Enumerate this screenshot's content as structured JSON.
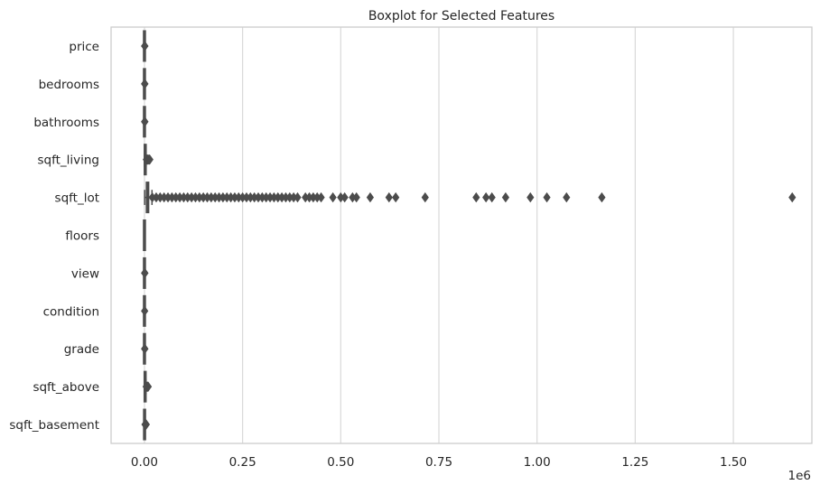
{
  "chart_data": {
    "type": "boxplot",
    "orientation": "horizontal",
    "title": "Boxplot for Selected Features",
    "xlabel": "",
    "ylabel": "",
    "x_offset_label": "1e6",
    "x_unit_multiplier": 1000000,
    "xlim": [
      -0.085,
      1.7
    ],
    "xticks": [
      0.0,
      0.25,
      0.5,
      0.75,
      1.0,
      1.25,
      1.5
    ],
    "xtick_labels": [
      "0.00",
      "0.25",
      "0.50",
      "0.75",
      "1.00",
      "1.25",
      "1.50"
    ],
    "grid": {
      "x": true,
      "y": false
    },
    "style_colors": {
      "box": "#4c4c4c",
      "grid": "#d9d9d9",
      "frame": "#cccccc"
    },
    "categories": [
      "price",
      "bedrooms",
      "bathrooms",
      "sqft_living",
      "sqft_lot",
      "floors",
      "view",
      "condition",
      "grade",
      "sqft_above",
      "sqft_basement"
    ],
    "series": [
      {
        "category": "price",
        "min": 0.0,
        "q1": 0.0,
        "median": 0.0,
        "q3": 0.0,
        "max": 0.001,
        "outliers": [
          0.0005,
          0.001
        ]
      },
      {
        "category": "bedrooms",
        "min": 0.0,
        "q1": 0.0,
        "median": 0.0,
        "q3": 0.0,
        "max": 0.0,
        "outliers": [
          0.0005,
          0.001
        ]
      },
      {
        "category": "bathrooms",
        "min": 0.0,
        "q1": 0.0,
        "median": 0.0,
        "q3": 0.0,
        "max": 0.0,
        "outliers": [
          0.0005,
          0.001
        ]
      },
      {
        "category": "sqft_living",
        "min": 0.0003,
        "q1": 0.0014,
        "median": 0.0019,
        "q3": 0.0025,
        "max": 0.0042,
        "outliers": [
          0.005,
          0.006,
          0.007,
          0.008,
          0.009,
          0.01,
          0.012,
          0.0135
        ]
      },
      {
        "category": "sqft_lot",
        "min": 0.0005,
        "q1": 0.005,
        "median": 0.0076,
        "q3": 0.0107,
        "max": 0.0192,
        "outliers": [
          0.02,
          0.03,
          0.04,
          0.05,
          0.06,
          0.07,
          0.08,
          0.09,
          0.1,
          0.11,
          0.12,
          0.13,
          0.14,
          0.15,
          0.16,
          0.17,
          0.18,
          0.19,
          0.2,
          0.21,
          0.22,
          0.23,
          0.24,
          0.25,
          0.26,
          0.27,
          0.28,
          0.29,
          0.3,
          0.31,
          0.32,
          0.33,
          0.34,
          0.35,
          0.36,
          0.37,
          0.38,
          0.39,
          0.41,
          0.42,
          0.43,
          0.44,
          0.45,
          0.48,
          0.5,
          0.51,
          0.53,
          0.54,
          0.575,
          0.623,
          0.64,
          0.715,
          0.845,
          0.87,
          0.885,
          0.92,
          0.983,
          1.025,
          1.075,
          1.165,
          1.65
        ]
      },
      {
        "category": "floors",
        "min": 0.0,
        "q1": 0.0,
        "median": 0.0,
        "q3": 0.0,
        "max": 0.0,
        "outliers": []
      },
      {
        "category": "view",
        "min": 0.0,
        "q1": 0.0,
        "median": 0.0,
        "q3": 0.0,
        "max": 0.0,
        "outliers": [
          0.0005,
          0.001
        ]
      },
      {
        "category": "condition",
        "min": 0.0,
        "q1": 0.0,
        "median": 0.0,
        "q3": 0.0,
        "max": 0.0,
        "outliers": [
          0.0005
        ]
      },
      {
        "category": "grade",
        "min": 0.0,
        "q1": 0.0,
        "median": 0.0,
        "q3": 0.0,
        "max": 0.0,
        "outliers": [
          0.0005,
          0.001
        ]
      },
      {
        "category": "sqft_above",
        "min": 0.0004,
        "q1": 0.0012,
        "median": 0.0016,
        "q3": 0.0022,
        "max": 0.004,
        "outliers": [
          0.0045,
          0.0055,
          0.0065,
          0.0075,
          0.0085,
          0.0095
        ]
      },
      {
        "category": "sqft_basement",
        "min": 0.0,
        "q1": 0.0,
        "median": 0.0,
        "q3": 0.0006,
        "max": 0.0014,
        "outliers": [
          0.0016,
          0.002,
          0.0025,
          0.003,
          0.0035,
          0.004,
          0.0045
        ]
      }
    ]
  }
}
